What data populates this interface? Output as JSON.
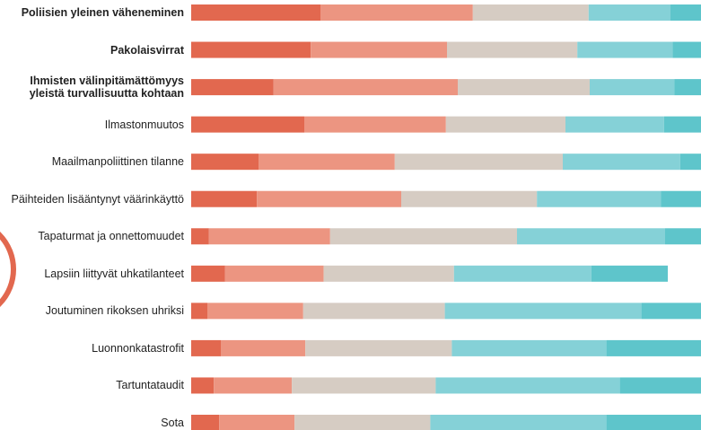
{
  "chart_data": {
    "type": "stacked-bar-horizontal",
    "categories": [
      "Poliisien yleinen väheneminen",
      "Pakolaisvirrat",
      "Ihmisten välinpitämättömyys\nyleistä turvallisuutta kohtaan",
      "Ilmastonmuutos",
      "Maailmanpoliittinen tilanne",
      "Päihteiden lisääntynyt väärinkäyttö",
      "Tapaturmat ja onnettomuudet",
      "Lapsiin liittyvät uhkatilanteet",
      "Joutuminen rikoksen uhriksi",
      "Luonnonkatastrofit",
      "Tartuntataudit",
      "Sota"
    ],
    "series": [
      {
        "color": "#e2684f",
        "values": [
          24,
          22.2,
          15.3,
          21,
          12.5,
          12.2,
          3.3,
          6.3,
          3,
          5.5,
          4.2,
          5.2
        ]
      },
      {
        "color": "#ec9581",
        "values": [
          28.3,
          25.3,
          34.2,
          26.3,
          25.3,
          26.8,
          22.5,
          18.3,
          17.8,
          15.7,
          14.5,
          14
        ]
      },
      {
        "color": "#d6ccc3",
        "values": [
          21.5,
          24.2,
          24.5,
          22.2,
          31.2,
          25.2,
          34.7,
          24.2,
          26.3,
          27.2,
          26.7,
          25.2
        ]
      },
      {
        "color": "#85d1d7",
        "values": [
          15.2,
          17.7,
          15.7,
          18.3,
          21.8,
          23,
          27.5,
          25.5,
          36.5,
          28.7,
          34.2,
          32.7
        ]
      },
      {
        "color": "#5ec5cb",
        "values": [
          11,
          10.6,
          10.3,
          12.2,
          9.2,
          12.8,
          12,
          14.2,
          16.4,
          22.9,
          20.4,
          22.9
        ]
      }
    ],
    "xlim": [
      0,
      100
    ]
  }
}
